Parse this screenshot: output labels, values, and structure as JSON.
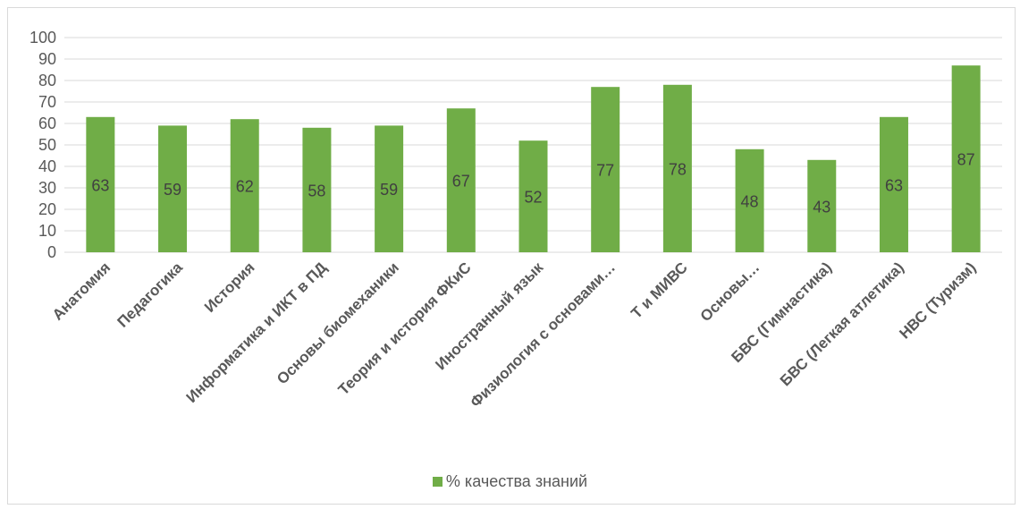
{
  "chart_data": {
    "type": "bar",
    "categories": [
      "Анатомия",
      "Педагогика",
      "История",
      "Информатика и ИКТ в ПД",
      "Основы биомеханики",
      "Теория и история ФКиС",
      "Иностранный язык",
      "Физиология с основами…",
      "Т и МИВС",
      "Основы…",
      "БВС (Гимнастика)",
      "БВС (Легкая атлетика)",
      "НВС (Туризм)"
    ],
    "series": [
      {
        "name": "% качества знаний",
        "values": [
          63,
          59,
          62,
          58,
          59,
          67,
          52,
          77,
          78,
          48,
          43,
          63,
          87
        ]
      }
    ],
    "ylim": [
      0,
      100
    ],
    "yticks": [
      0,
      10,
      20,
      30,
      40,
      50,
      60,
      70,
      80,
      90,
      100
    ],
    "grid": true,
    "legend_position": "bottom",
    "data_labels": "center",
    "colors": {
      "bar": "#70ad47",
      "grid": "#d9d9d9",
      "axis_text": "#595959",
      "data_label": "#404040"
    }
  }
}
